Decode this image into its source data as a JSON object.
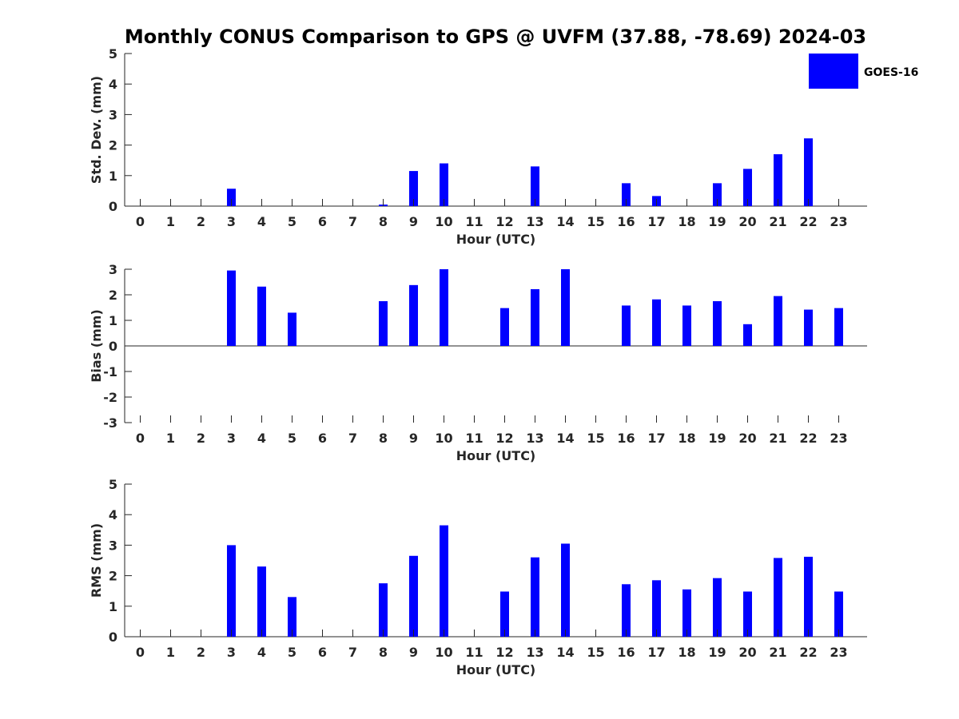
{
  "title": "Monthly CONUS Comparison to GPS @ UVFM (37.88, -78.69) 2024-03",
  "legend": {
    "label": "GOES-16",
    "color": "#0000ff",
    "placement": "top-right"
  },
  "colors": {
    "bar": "#0000ff",
    "axis": "#262626",
    "text": "#262626"
  },
  "chart_data": [
    {
      "type": "bar",
      "name": "std-dev",
      "xlabel": "Hour (UTC)",
      "ylabel": "Std. Dev. (mm)",
      "ylim": [
        0,
        5
      ],
      "yticks": [
        0,
        1,
        2,
        3,
        4,
        5
      ],
      "categories": [
        "0",
        "1",
        "2",
        "3",
        "4",
        "5",
        "6",
        "7",
        "8",
        "9",
        "10",
        "11",
        "12",
        "13",
        "14",
        "15",
        "16",
        "17",
        "18",
        "19",
        "20",
        "21",
        "22",
        "23"
      ],
      "series": [
        {
          "name": "GOES-16",
          "values": [
            0,
            0,
            0,
            0.57,
            0,
            0,
            0,
            0,
            0.05,
            1.15,
            1.4,
            0,
            0,
            1.3,
            0,
            0,
            0.75,
            0.33,
            0,
            0.75,
            1.22,
            1.7,
            2.22,
            0
          ]
        }
      ]
    },
    {
      "type": "bar",
      "name": "bias",
      "xlabel": "Hour (UTC)",
      "ylabel": "Bias (mm)",
      "ylim": [
        -3,
        3
      ],
      "yticks": [
        -3,
        -2,
        -1,
        0,
        1,
        2,
        3
      ],
      "categories": [
        "0",
        "1",
        "2",
        "3",
        "4",
        "5",
        "6",
        "7",
        "8",
        "9",
        "10",
        "11",
        "12",
        "13",
        "14",
        "15",
        "16",
        "17",
        "18",
        "19",
        "20",
        "21",
        "22",
        "23"
      ],
      "series": [
        {
          "name": "GOES-16",
          "values": [
            0,
            0,
            0,
            2.95,
            2.32,
            1.3,
            0,
            0,
            1.75,
            2.38,
            3.0,
            0,
            1.48,
            2.22,
            3.0,
            0,
            1.58,
            1.82,
            1.58,
            1.75,
            0.85,
            1.95,
            1.42,
            1.48
          ]
        }
      ]
    },
    {
      "type": "bar",
      "name": "rms",
      "xlabel": "Hour (UTC)",
      "ylabel": "RMS (mm)",
      "ylim": [
        0,
        5
      ],
      "yticks": [
        0,
        1,
        2,
        3,
        4,
        5
      ],
      "categories": [
        "0",
        "1",
        "2",
        "3",
        "4",
        "5",
        "6",
        "7",
        "8",
        "9",
        "10",
        "11",
        "12",
        "13",
        "14",
        "15",
        "16",
        "17",
        "18",
        "19",
        "20",
        "21",
        "22",
        "23"
      ],
      "series": [
        {
          "name": "GOES-16",
          "values": [
            0,
            0,
            0,
            3.0,
            2.3,
            1.3,
            0,
            0,
            1.75,
            2.65,
            3.65,
            0,
            1.48,
            2.6,
            3.05,
            0,
            1.72,
            1.85,
            1.55,
            1.92,
            1.48,
            2.58,
            2.62,
            1.48
          ]
        }
      ]
    }
  ]
}
